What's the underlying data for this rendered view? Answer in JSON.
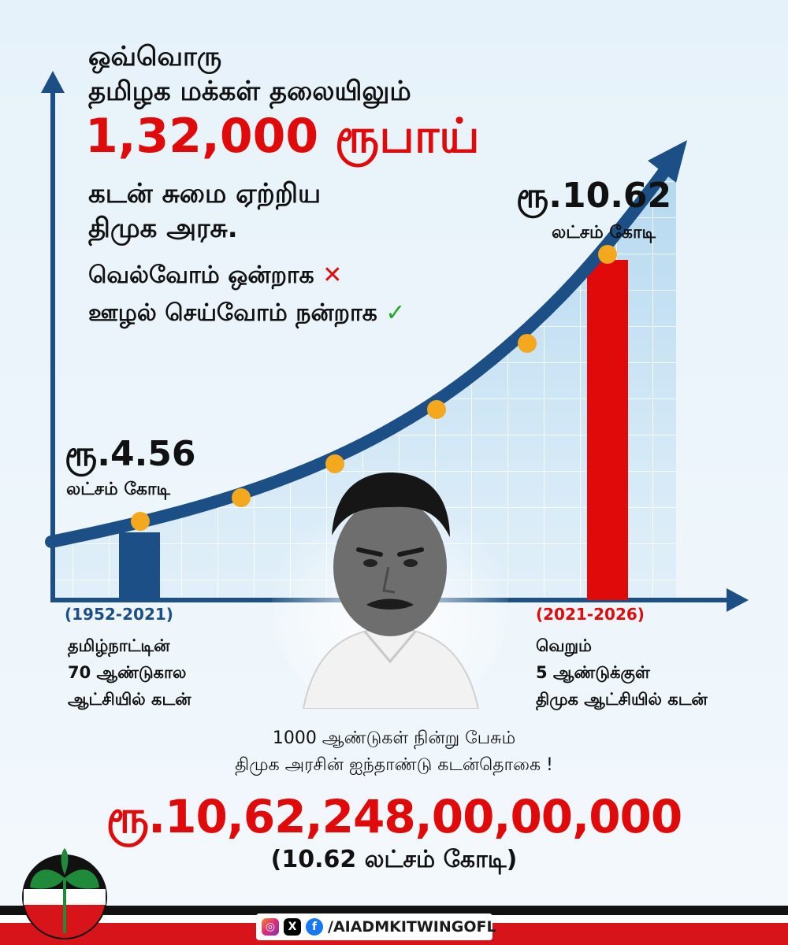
{
  "headline": {
    "line1": "ஒவ்வொரு",
    "line2": "தமிழக மக்கள் தலையிலும்",
    "amount": "1,32,000 ரூபாய்",
    "line3": "கடன் சுமை ஏற்றிய",
    "line4": "திமுக அரசு."
  },
  "slogan": {
    "wrong": "வெல்வோம் ஒன்றாக",
    "wrong_mark": "✕",
    "right": "ஊழல் செய்வோம் நன்றாக",
    "right_mark": "✓"
  },
  "left_value": {
    "amount": "ரூ.4.56",
    "unit": "லட்சம் கோடி",
    "range": "(1952-2021)",
    "desc1": "தமிழ்நாட்டின்",
    "desc2": "70 ஆண்டுகால",
    "desc3": "ஆட்சியில் கடன்"
  },
  "right_value": {
    "amount": "ரூ.10.62",
    "unit": "லட்சம் கோடி",
    "range": "(2021-2026)",
    "desc1": "வெறும்",
    "desc2": "5 ஆண்டுக்குள்",
    "desc3": "திமுக ஆட்சியில் கடன்"
  },
  "summary": {
    "line1": "1000 ஆண்டுகள் நின்று பேசும்",
    "line2": "திமுக அரசின் ஐந்தாண்டு கடன்தொகை !"
  },
  "total": {
    "amount": "ரூ.10,62,248,00,00,000",
    "sub": "(10.62 லட்சம் கோடி)"
  },
  "footer": {
    "handle": "/AIADMKITWINGOFL",
    "icons": [
      "instagram-icon",
      "x-icon",
      "facebook-icon"
    ]
  },
  "colors": {
    "red": "#e10a0a",
    "navy": "#1b4f86",
    "dot": "#f4a81d",
    "check": "#2aa532",
    "party_green": "#1e8a3a",
    "party_red": "#d8141b"
  },
  "chart_data": {
    "type": "bar",
    "categories": [
      "(1952-2021)",
      "(2021-2026)"
    ],
    "values": [
      4.56,
      10.62
    ],
    "units": "லட்சம் கோடி",
    "colors": [
      "#1b4f86",
      "#e10a0a"
    ]
  }
}
